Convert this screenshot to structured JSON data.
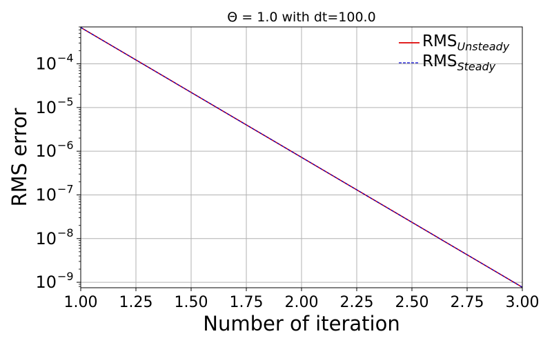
{
  "chart_data": {
    "type": "line",
    "title": "Θ = 1.0 with dt=100.0",
    "xlabel": "Number of iteration",
    "ylabel": "RMS error",
    "xlim": [
      1.0,
      3.0
    ],
    "ylim": [
      7.5e-10,
      0.0007
    ],
    "yscale": "log",
    "grid": true,
    "legend_position": "top-right",
    "x_ticks": [
      "1.00",
      "1.25",
      "1.50",
      "1.75",
      "2.00",
      "2.25",
      "2.50",
      "2.75",
      "3.00"
    ],
    "y_ticks": [
      {
        "value": 1e-09,
        "base": "10",
        "exp": "−9"
      },
      {
        "value": 1e-08,
        "base": "10",
        "exp": "−8"
      },
      {
        "value": 1e-07,
        "base": "10",
        "exp": "−7"
      },
      {
        "value": 1e-06,
        "base": "10",
        "exp": "−6"
      },
      {
        "value": 1e-05,
        "base": "10",
        "exp": "−5"
      },
      {
        "value": 0.0001,
        "base": "10",
        "exp": "−4"
      }
    ],
    "series": [
      {
        "name": "RMS",
        "sub": "Unsteady",
        "color": "#dd0000",
        "style": "solid",
        "x": [
          1.0,
          3.0
        ],
        "y": [
          0.00068,
          7.7e-10
        ]
      },
      {
        "name": "RMS",
        "sub": "Steady",
        "color": "#0000cc",
        "style": "dashed",
        "x": [
          1.0,
          3.0
        ],
        "y": [
          0.00068,
          7.7e-10
        ]
      }
    ]
  }
}
